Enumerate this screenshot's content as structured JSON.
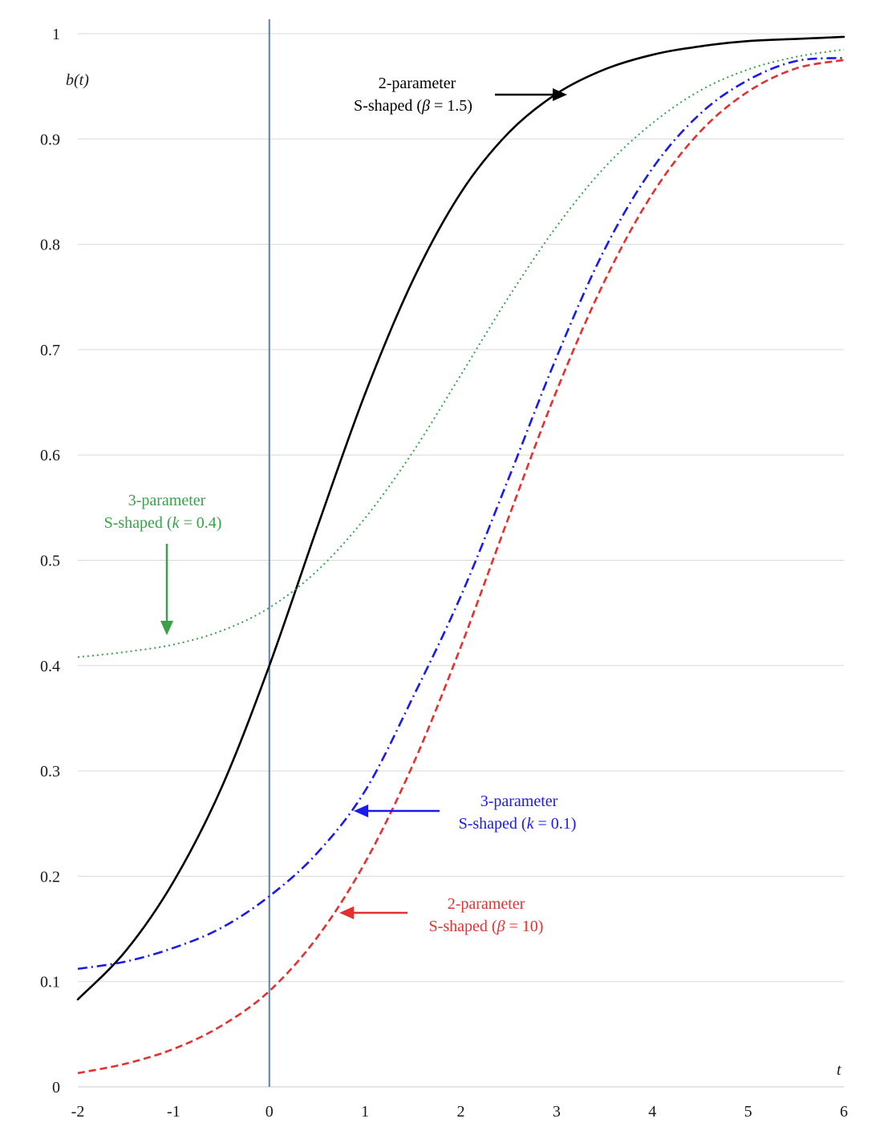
{
  "chart_data": {
    "type": "line",
    "xlabel": "t",
    "ylabel": "b(t)",
    "xlim": [
      -2,
      6
    ],
    "ylim": [
      0,
      1
    ],
    "x_ticks": [
      "-2",
      "-1",
      "0",
      "1",
      "2",
      "3",
      "4",
      "5",
      "6"
    ],
    "y_ticks": [
      "0",
      "0.1",
      "0.2",
      "0.3",
      "0.4",
      "0.5",
      "0.6",
      "0.7",
      "0.8",
      "0.9",
      "1"
    ],
    "grid": "horizontal",
    "vertical_reference_line": {
      "x": 0,
      "color": "#5b7fb5"
    },
    "x": [
      -2,
      -1.5,
      -1,
      -0.5,
      0,
      0.5,
      1,
      1.5,
      2,
      2.5,
      3,
      3.5,
      4,
      4.5,
      5,
      5.5,
      6
    ],
    "series": [
      {
        "color": "#000000",
        "style": "solid",
        "values": [
          0.083,
          0.129,
          0.195,
          0.284,
          0.4,
          0.531,
          0.658,
          0.766,
          0.849,
          0.906,
          0.943,
          0.966,
          0.98,
          0.988,
          0.993,
          0.995,
          0.997
        ]
      },
      {
        "color": "#3aa04a",
        "style": "dotted",
        "values": [
          0.408,
          0.413,
          0.42,
          0.433,
          0.455,
          0.49,
          0.54,
          0.603,
          0.676,
          0.75,
          0.817,
          0.873,
          0.915,
          0.946,
          0.966,
          0.978,
          0.985
        ]
      },
      {
        "color": "#1a1aee",
        "style": "dash-dot",
        "values": [
          0.112,
          0.119,
          0.132,
          0.151,
          0.181,
          0.222,
          0.281,
          0.37,
          0.466,
          0.578,
          0.693,
          0.795,
          0.872,
          0.924,
          0.956,
          0.974,
          0.977
        ]
      },
      {
        "color": "#e53030",
        "style": "dashed",
        "values": [
          0.013,
          0.022,
          0.036,
          0.058,
          0.091,
          0.142,
          0.213,
          0.306,
          0.418,
          0.541,
          0.661,
          0.765,
          0.848,
          0.907,
          0.945,
          0.967,
          0.975
        ]
      }
    ],
    "annotations": [
      {
        "line1": "2-parameter",
        "line2_prefix": "S-shaped (",
        "symbol": "β",
        "line2_suffix": " = 1.5)",
        "color": "#000000",
        "arrow": "right"
      },
      {
        "line1": "3-parameter",
        "line2_prefix": "S-shaped (",
        "symbol": "k",
        "line2_suffix": " = 0.4)",
        "color": "#3aa04a",
        "arrow": "down"
      },
      {
        "line1": "3-parameter",
        "line2_prefix": "S-shaped (",
        "symbol": "k",
        "line2_suffix": " = 0.1)",
        "color": "#1a1aee",
        "arrow": "left"
      },
      {
        "line1": "2-parameter",
        "line2_prefix": "S-shaped (",
        "symbol": "β",
        "line2_suffix": " = 10)",
        "color": "#e53030",
        "arrow": "left"
      }
    ]
  }
}
